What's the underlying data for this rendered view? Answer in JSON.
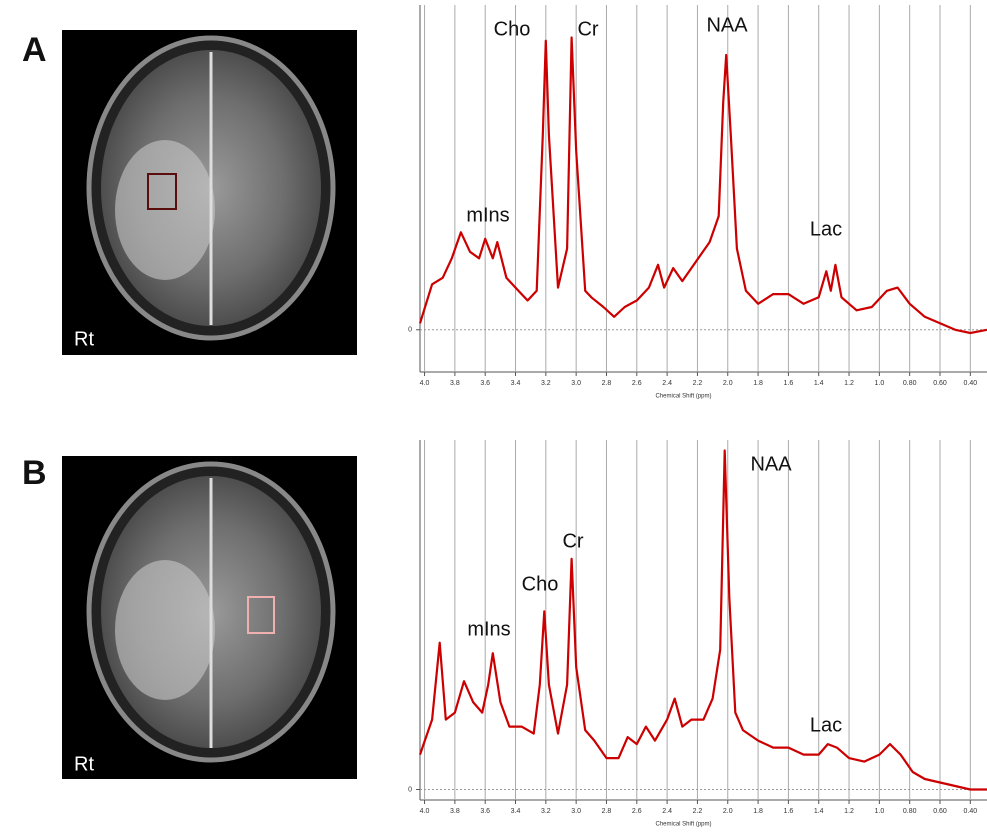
{
  "panels": [
    {
      "label": "A",
      "image_label": "Rt"
    },
    {
      "label": "B",
      "image_label": "Rt"
    }
  ],
  "chart_data": [
    {
      "type": "line",
      "xlabel": "Chemical Shift (ppm)",
      "color": "#cc0000",
      "grid": true,
      "xlim": [
        4.03,
        0.29
      ],
      "ylim": [
        -0.13,
        1.0
      ],
      "xticks": [
        {
          "value": 4,
          "label": "4.0"
        },
        3.8,
        3.6,
        3.4,
        3.2,
        {
          "value": 3,
          "label": "3.0"
        },
        2.8,
        2.6,
        2.4,
        2.2,
        {
          "value": 2,
          "label": "2.0"
        },
        1.8,
        1.6,
        1.4,
        1.2,
        {
          "value": 1,
          "label": "1.0"
        },
        {
          "value": 0.8,
          "label": "0.80"
        },
        {
          "value": 0.6,
          "label": "0.60"
        },
        {
          "value": 0.4,
          "label": "0.40"
        }
      ],
      "yticks": [
        0
      ],
      "annotations": [
        "Cho",
        "Cr",
        "NAA",
        "mIns",
        "Lac"
      ],
      "x": [
        4.03,
        3.95,
        3.88,
        3.82,
        3.76,
        3.7,
        3.64,
        3.6,
        3.55,
        3.52,
        3.46,
        3.4,
        3.32,
        3.26,
        3.22,
        3.2,
        3.18,
        3.12,
        3.06,
        3.03,
        3.0,
        2.94,
        2.9,
        2.82,
        2.75,
        2.68,
        2.6,
        2.52,
        2.46,
        2.42,
        2.36,
        2.3,
        2.24,
        2.18,
        2.12,
        2.06,
        2.03,
        2.01,
        1.98,
        1.94,
        1.88,
        1.8,
        1.7,
        1.6,
        1.5,
        1.4,
        1.35,
        1.32,
        1.29,
        1.25,
        1.15,
        1.05,
        0.95,
        0.88,
        0.8,
        0.7,
        0.6,
        0.5,
        0.4,
        0.29
      ],
      "values": [
        0.02,
        0.14,
        0.16,
        0.22,
        0.3,
        0.24,
        0.22,
        0.28,
        0.22,
        0.27,
        0.16,
        0.13,
        0.09,
        0.12,
        0.6,
        0.89,
        0.6,
        0.13,
        0.25,
        0.9,
        0.55,
        0.12,
        0.1,
        0.07,
        0.04,
        0.07,
        0.09,
        0.13,
        0.2,
        0.13,
        0.19,
        0.15,
        0.19,
        0.23,
        0.27,
        0.35,
        0.7,
        0.846,
        0.6,
        0.25,
        0.12,
        0.08,
        0.11,
        0.11,
        0.08,
        0.1,
        0.18,
        0.12,
        0.2,
        0.1,
        0.06,
        0.07,
        0.12,
        0.13,
        0.08,
        0.04,
        0.02,
        0.0,
        -0.01,
        0.0
      ]
    },
    {
      "type": "line",
      "xlabel": "Chemical Shift (ppm)",
      "color": "#cc0000",
      "grid": true,
      "xlim": [
        4.03,
        0.29
      ],
      "ylim": [
        -0.03,
        1.0
      ],
      "xticks": [
        {
          "value": 4,
          "label": "4.0"
        },
        3.8,
        3.6,
        3.4,
        3.2,
        {
          "value": 3,
          "label": "3.0"
        },
        2.8,
        2.6,
        2.4,
        2.2,
        {
          "value": 2,
          "label": "2.0"
        },
        1.8,
        1.6,
        1.4,
        1.2,
        {
          "value": 1,
          "label": "1.0"
        },
        {
          "value": 0.8,
          "label": "0.80"
        },
        {
          "value": 0.6,
          "label": "0.60"
        },
        {
          "value": 0.4,
          "label": "0.40"
        }
      ],
      "yticks": [
        0
      ],
      "annotations": [
        "NAA",
        "Cr",
        "Cho",
        "mIns",
        "Lac"
      ],
      "x": [
        4.03,
        3.95,
        3.9,
        3.86,
        3.8,
        3.74,
        3.68,
        3.62,
        3.58,
        3.55,
        3.5,
        3.44,
        3.36,
        3.28,
        3.24,
        3.21,
        3.18,
        3.12,
        3.06,
        3.03,
        3.0,
        2.94,
        2.88,
        2.8,
        2.72,
        2.66,
        2.6,
        2.54,
        2.48,
        2.4,
        2.35,
        2.3,
        2.24,
        2.16,
        2.1,
        2.05,
        2.02,
        1.99,
        1.95,
        1.9,
        1.8,
        1.7,
        1.6,
        1.5,
        1.4,
        1.34,
        1.28,
        1.2,
        1.1,
        1.0,
        0.93,
        0.86,
        0.78,
        0.7,
        0.6,
        0.5,
        0.4,
        0.29
      ],
      "values": [
        0.1,
        0.2,
        0.42,
        0.2,
        0.22,
        0.31,
        0.25,
        0.22,
        0.3,
        0.39,
        0.25,
        0.18,
        0.18,
        0.16,
        0.3,
        0.51,
        0.3,
        0.16,
        0.3,
        0.66,
        0.35,
        0.17,
        0.14,
        0.09,
        0.09,
        0.15,
        0.13,
        0.18,
        0.14,
        0.2,
        0.26,
        0.18,
        0.2,
        0.2,
        0.26,
        0.4,
        0.97,
        0.55,
        0.22,
        0.17,
        0.14,
        0.12,
        0.12,
        0.1,
        0.1,
        0.13,
        0.12,
        0.09,
        0.08,
        0.1,
        0.13,
        0.1,
        0.05,
        0.03,
        0.02,
        0.01,
        0.0,
        0.0
      ]
    }
  ]
}
